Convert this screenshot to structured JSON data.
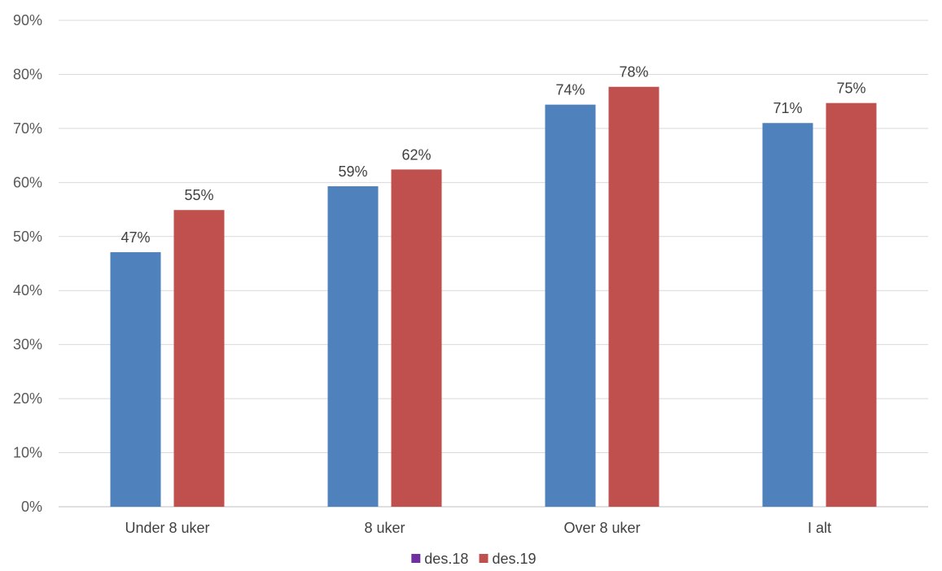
{
  "chart_data": {
    "type": "bar",
    "title": "",
    "xlabel": "",
    "ylabel": "",
    "categories": [
      "Under 8 uker",
      "8 uker",
      "Over 8 uker",
      "I alt"
    ],
    "series": [
      {
        "name": "des.18",
        "bar_color": "#4F81BD",
        "legend_color": "#7030A0",
        "values": [
          47.1,
          59.3,
          74.4,
          71.0
        ],
        "labels": [
          "47%",
          "59%",
          "74%",
          "71%"
        ]
      },
      {
        "name": "des.19",
        "bar_color": "#C0504D",
        "legend_color": "#C0504D",
        "values": [
          54.9,
          62.4,
          77.7,
          74.7
        ],
        "labels": [
          "55%",
          "62%",
          "78%",
          "75%"
        ]
      }
    ],
    "ylim": [
      0,
      90
    ],
    "yticks": [
      0,
      10,
      20,
      30,
      40,
      50,
      60,
      70,
      80,
      90
    ],
    "ytick_labels": [
      "0%",
      "10%",
      "20%",
      "30%",
      "40%",
      "50%",
      "60%",
      "70%",
      "80%",
      "90%"
    ],
    "grid": true,
    "legend_position": "bottom"
  }
}
